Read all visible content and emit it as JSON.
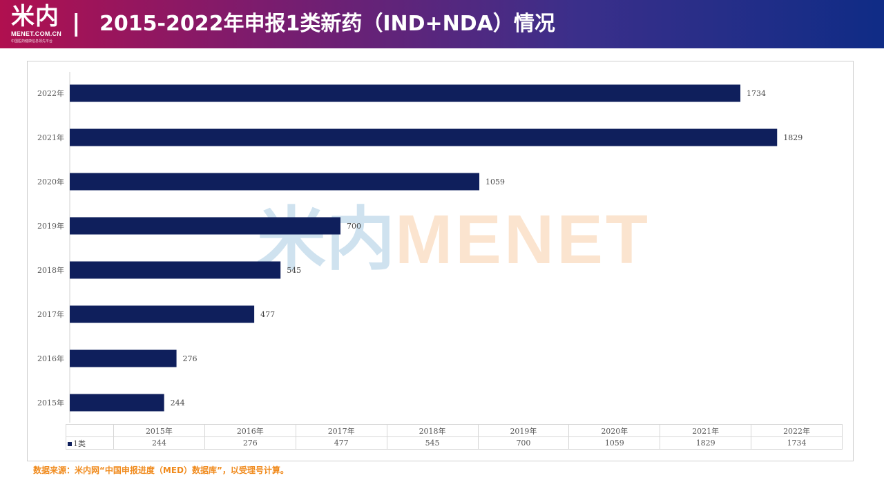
{
  "header": {
    "logo_text": "米内",
    "logo_domain": "MENET.COM.CN",
    "logo_tagline": "中国医药健康信息领先平台",
    "separator": "|",
    "title": "2015-2022年申报1类新药（IND+NDA）情况"
  },
  "watermark": {
    "cn": "米内",
    "en": "MENET"
  },
  "chart_data": {
    "type": "bar",
    "orientation": "horizontal",
    "categories": [
      "2015年",
      "2016年",
      "2017年",
      "2018年",
      "2019年",
      "2020年",
      "2021年",
      "2022年"
    ],
    "series": [
      {
        "name": "1类",
        "values": [
          244,
          276,
          477,
          545,
          700,
          1059,
          1829,
          1734
        ],
        "color": "#0f1f5c"
      }
    ],
    "xlim": [
      0,
      2000
    ],
    "grid": false,
    "data_table": true
  },
  "source": "数据来源：米内网“中国申报进度（MED）数据库”，以受理号计算。",
  "colors": {
    "bar": "#0f1f5c",
    "accent": "#f08a1c"
  }
}
